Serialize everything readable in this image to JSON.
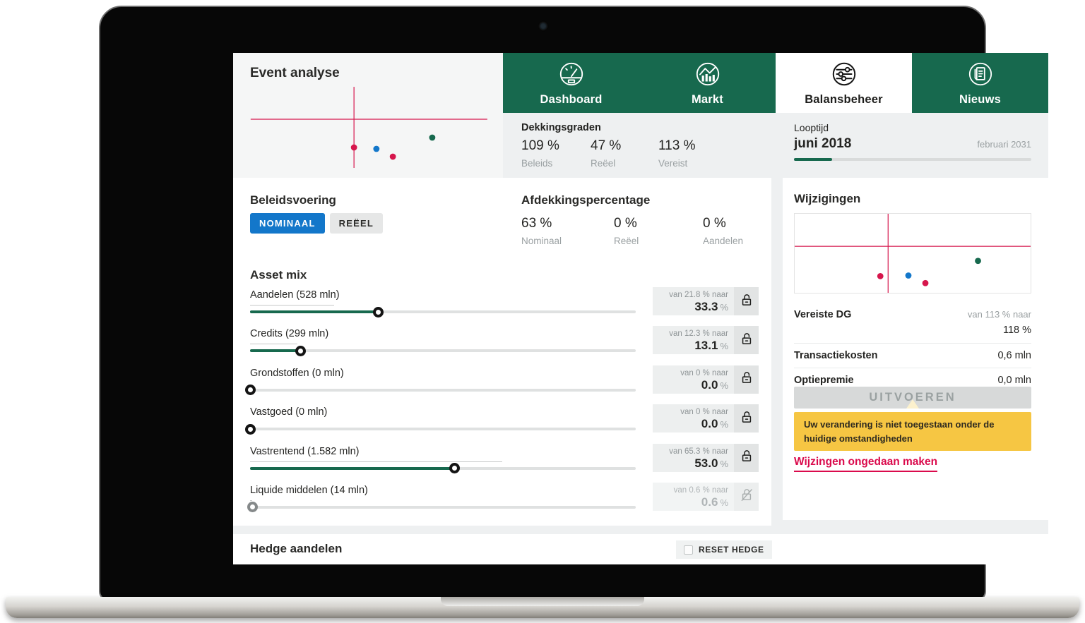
{
  "colors": {
    "green": "#17694e",
    "crimson": "#d6164c",
    "blue": "#1377ca",
    "yellow": "#f6c643",
    "link_red": "#da0a4c"
  },
  "event_analyse": {
    "title": "Event analyse"
  },
  "tabs": [
    {
      "label": "Dashboard",
      "icon": "gauge-icon",
      "active": false
    },
    {
      "label": "Markt",
      "icon": "market-chart-icon",
      "active": false
    },
    {
      "label": "Balansbeheer",
      "icon": "sliders-icon",
      "active": true
    },
    {
      "label": "Nieuws",
      "icon": "news-icon",
      "active": false
    }
  ],
  "dekkingsgraden": {
    "title": "Dekkingsgraden",
    "items": [
      {
        "value": "109 %",
        "label": "Beleids"
      },
      {
        "value": "47 %",
        "label": "Reëel"
      },
      {
        "value": "113 %",
        "label": "Vereist"
      }
    ]
  },
  "looptijd": {
    "title": "Looptijd",
    "current": "juni 2018",
    "end": "februari 2031",
    "progress_pct": 16
  },
  "beleidsvoering": {
    "title": "Beleidsvoering",
    "options": [
      {
        "label": "NOMINAAL",
        "active": true
      },
      {
        "label": "REËEL",
        "active": false
      }
    ]
  },
  "afdekkingspercentage": {
    "title": "Afdekkingspercentage",
    "items": [
      {
        "value": "63 %",
        "label": "Nominaal"
      },
      {
        "value": "0 %",
        "label": "Reëel"
      },
      {
        "value": "0 %",
        "label": "Aandelen"
      }
    ]
  },
  "asset_mix": {
    "title": "Asset mix",
    "percent_suffix": "%",
    "sliders": [
      {
        "label": "Aandelen (528 mln)",
        "van_label": "van 21.8 % naar",
        "naar_value": "33.3",
        "van_pct": 21.8,
        "naar_pct": 33.3,
        "disabled": false
      },
      {
        "label": "Credits (299 mln)",
        "van_label": "van 12.3 % naar",
        "naar_value": "13.1",
        "van_pct": 12.3,
        "naar_pct": 13.1,
        "disabled": false
      },
      {
        "label": "Grondstoffen (0 mln)",
        "van_label": "van 0 % naar",
        "naar_value": "0.0",
        "van_pct": 0,
        "naar_pct": 0,
        "disabled": false
      },
      {
        "label": "Vastgoed (0 mln)",
        "van_label": "van 0 % naar",
        "naar_value": "0.0",
        "van_pct": 0,
        "naar_pct": 0,
        "disabled": false
      },
      {
        "label": "Vastrentend (1.582 mln)",
        "van_label": "van 65.3 % naar",
        "naar_value": "53.0",
        "van_pct": 65.3,
        "naar_pct": 53,
        "disabled": false
      },
      {
        "label": "Liquide middelen (14 mln)",
        "van_label": "van 0.6 % naar",
        "naar_value": "0.6",
        "van_pct": 0.6,
        "naar_pct": 0.6,
        "disabled": true
      }
    ]
  },
  "wijzigingen": {
    "title": "Wijzigingen",
    "vereiste_dg": {
      "label": "Vereiste DG",
      "van": "van 113 % naar",
      "naar": "118 %"
    },
    "rows": [
      {
        "label": "Transactiekosten",
        "value": "0,6 mln"
      },
      {
        "label": "Optiepremie",
        "value": "0,0 mln"
      }
    ],
    "execute_label": "UITVOEREN",
    "warning": "Uw verandering is niet toegestaan onder de huidige omstandigheden",
    "undo_label": "Wijzingen ongedaan maken"
  },
  "hedge": {
    "title": "Hedge aandelen",
    "reset_label": "RESET HEDGE"
  },
  "chart_data": [
    {
      "id": "event-analyse",
      "type": "scatter",
      "title": "Event analyse",
      "axes": {
        "labels": false,
        "grid": false,
        "crosshair": true
      },
      "vline": {
        "x": 0.448,
        "y1": 0.079,
        "y2": 0.9
      },
      "hline": {
        "y": 0.407,
        "x1": 0.065,
        "x2": 0.942
      },
      "points": [
        {
          "x": 0.448,
          "y": 0.693,
          "color": "crimson"
        },
        {
          "x": 0.531,
          "y": 0.707,
          "color": "blue"
        },
        {
          "x": 0.592,
          "y": 0.786,
          "color": "crimson"
        },
        {
          "x": 0.738,
          "y": 0.593,
          "color": "green"
        }
      ]
    },
    {
      "id": "wijzigingen",
      "type": "scatter",
      "title": "Wijzigingen",
      "axes": {
        "labels": false,
        "grid": false,
        "crosshair": true
      },
      "vline": {
        "x": 0.396,
        "y1": 0,
        "y2": 1
      },
      "hline": {
        "y": 0.412,
        "x1": 0,
        "x2": 1
      },
      "points": [
        {
          "x": 0.363,
          "y": 0.789,
          "color": "crimson"
        },
        {
          "x": 0.482,
          "y": 0.781,
          "color": "blue"
        },
        {
          "x": 0.554,
          "y": 0.877,
          "color": "crimson"
        },
        {
          "x": 0.777,
          "y": 0.596,
          "color": "green"
        }
      ]
    }
  ]
}
